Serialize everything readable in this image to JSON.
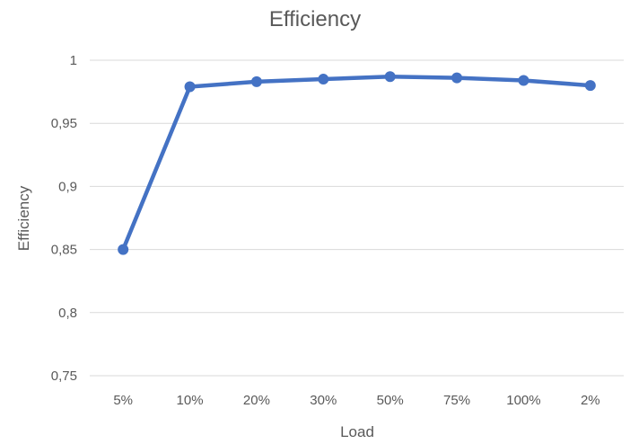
{
  "chart_data": {
    "type": "line",
    "title": "Efficiency",
    "xlabel": "Load",
    "ylabel": "Efficiency",
    "categories": [
      "5%",
      "10%",
      "20%",
      "30%",
      "50%",
      "75%",
      "100%",
      "2%"
    ],
    "series": [
      {
        "values": [
          0.85,
          0.979,
          0.983,
          0.985,
          0.987,
          0.986,
          0.984,
          0.98
        ],
        "color": "#4472c4"
      }
    ],
    "ylim": [
      0.75,
      1
    ],
    "yticks": [
      0.75,
      0.8,
      0.85,
      0.9,
      0.95,
      1
    ],
    "ytick_labels": [
      "0,75",
      "0,8",
      "0,85",
      "0,9",
      "0,95",
      "1"
    ],
    "grid": true,
    "legend": "none"
  }
}
